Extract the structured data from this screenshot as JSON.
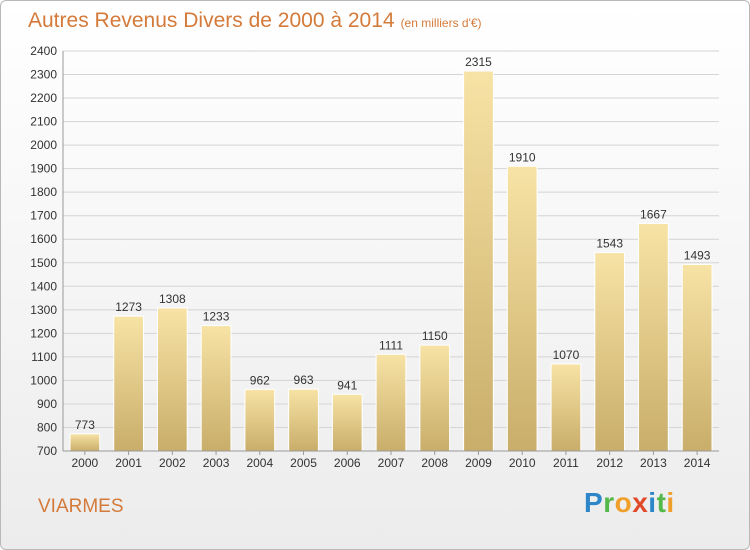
{
  "title": "Autres Revenus Divers de 2000 à 2014",
  "subtitle": "(en milliers d'€)",
  "location": "VIARMES",
  "logo": {
    "letters": [
      "P",
      "r",
      "o",
      "x",
      "i",
      "t",
      "i"
    ],
    "colors": [
      "#2c86c8",
      "#55b84a",
      "#f0a02a",
      "#e04a2a",
      "#2c86c8",
      "#55b84a",
      "#f0a02a"
    ]
  },
  "colors": {
    "bar_light": "#f7e3a5",
    "bar_dark": "#c9ad6a",
    "grid": "#d4d4d4",
    "title": "#d47a3a"
  },
  "chart_data": {
    "type": "bar",
    "categories": [
      "2000",
      "2001",
      "2002",
      "2003",
      "2004",
      "2005",
      "2006",
      "2007",
      "2008",
      "2009",
      "2010",
      "2011",
      "2012",
      "2013",
      "2014"
    ],
    "values": [
      773,
      1273,
      1308,
      1233,
      962,
      963,
      941,
      1111,
      1150,
      2315,
      1910,
      1070,
      1543,
      1667,
      1493
    ],
    "ylim": [
      700,
      2400
    ],
    "yticks": [
      700,
      800,
      900,
      1000,
      1100,
      1200,
      1300,
      1400,
      1500,
      1600,
      1700,
      1800,
      1900,
      2000,
      2100,
      2200,
      2300,
      2400
    ],
    "grid": true,
    "data_labels": true
  }
}
